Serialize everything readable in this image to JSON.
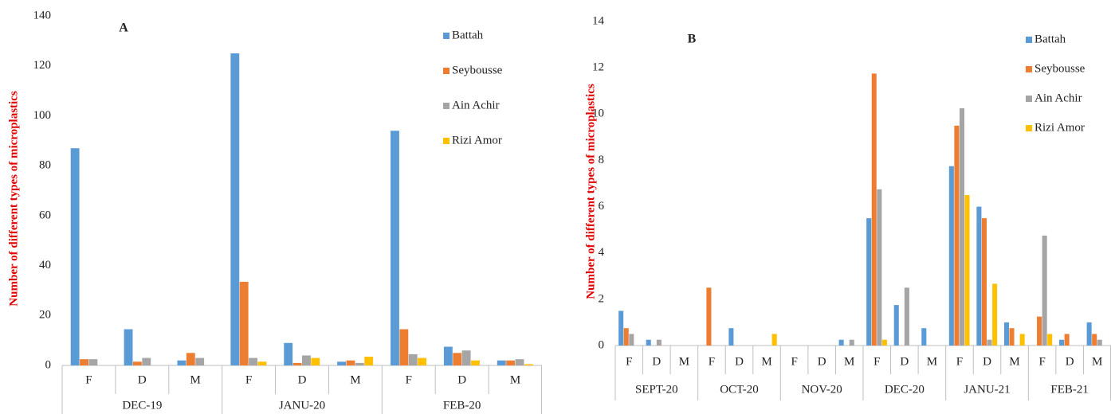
{
  "chart_data": [
    {
      "type": "bar",
      "title": "A",
      "y_label": "Number of different types of microplastics",
      "groups": [
        {
          "name": "DEC-19",
          "categories": [
            "F",
            "D",
            "M"
          ]
        },
        {
          "name": "JANU-20",
          "categories": [
            "F",
            "D",
            "M"
          ]
        },
        {
          "name": "FEB-20",
          "categories": [
            "F",
            "D",
            "M"
          ]
        }
      ],
      "series": [
        {
          "name": "Battah",
          "color": "#5b9bd5",
          "values": [
            87,
            14.5,
            2,
            125,
            9,
            1.5,
            94,
            7.5,
            2
          ]
        },
        {
          "name": "Seybousse",
          "color": "#ed7d31",
          "values": [
            2.5,
            1.5,
            5,
            33.5,
            1,
            2,
            14.5,
            5,
            2
          ]
        },
        {
          "name": "Ain Achir",
          "color": "#a5a5a5",
          "values": [
            2.5,
            3,
            3,
            3,
            4,
            1,
            4.5,
            6,
            2.5
          ]
        },
        {
          "name": "Rizi Amor",
          "color": "#ffc000",
          "values": [
            0,
            0,
            0,
            1.5,
            3,
            3.5,
            3,
            2,
            0.5
          ]
        }
      ],
      "ylim": [
        0,
        140
      ],
      "yticks": [
        0,
        20,
        40,
        60,
        80,
        100,
        120,
        140
      ],
      "grid": false,
      "legend": "upper-right"
    },
    {
      "type": "bar",
      "title": "B",
      "y_label": "Number of different types of microplastics",
      "groups": [
        {
          "name": "SEPT-20",
          "categories": [
            "F",
            "D",
            "M"
          ]
        },
        {
          "name": "OCT-20",
          "categories": [
            "F",
            "D",
            "M"
          ]
        },
        {
          "name": "NOV-20",
          "categories": [
            "F",
            "D",
            "M"
          ]
        },
        {
          "name": "DEC-20",
          "categories": [
            "F",
            "D",
            "M"
          ]
        },
        {
          "name": "JANU-21",
          "categories": [
            "F",
            "D",
            "M"
          ]
        },
        {
          "name": "FEB-21",
          "categories": [
            "F",
            "D",
            "M"
          ]
        }
      ],
      "series": [
        {
          "name": "Battah",
          "color": "#5b9bd5",
          "values": [
            1.5,
            0.25,
            0,
            0,
            0.75,
            0,
            0,
            0,
            0.25,
            5.5,
            1.75,
            0.75,
            7.75,
            6,
            1,
            0,
            0.25,
            1
          ]
        },
        {
          "name": "Seybousse",
          "color": "#ed7d31",
          "values": [
            0.75,
            0,
            0,
            2.5,
            0,
            0,
            0,
            0,
            0,
            11.75,
            0,
            0,
            9.5,
            5.5,
            0.75,
            1.25,
            0.5,
            0.5
          ]
        },
        {
          "name": "Ain Achir",
          "color": "#a5a5a5",
          "values": [
            0.5,
            0.25,
            0,
            0,
            0,
            0,
            0,
            0,
            0.25,
            6.75,
            2.5,
            0,
            10.25,
            0.25,
            0,
            4.75,
            0,
            0.25
          ]
        },
        {
          "name": "Rizi Amor",
          "color": "#ffc000",
          "values": [
            0,
            0,
            0,
            0,
            0,
            0.5,
            0,
            0,
            0,
            0.25,
            0,
            0,
            6.5,
            2.67,
            0.5,
            0.5,
            0,
            0
          ]
        }
      ],
      "ylim": [
        0,
        14
      ],
      "yticks": [
        0,
        2,
        4,
        6,
        8,
        10,
        12,
        14
      ],
      "grid": false,
      "legend": "upper-right"
    }
  ]
}
